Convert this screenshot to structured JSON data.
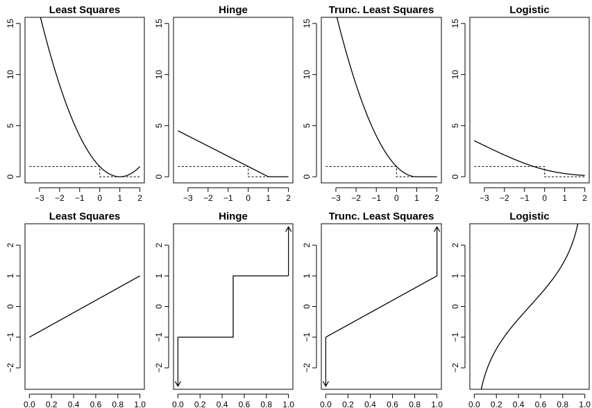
{
  "chart_data": [
    {
      "type": "line",
      "title": "Least Squares",
      "xlabel": "",
      "ylabel": "",
      "xlim": [
        -3.5,
        2
      ],
      "ylim": [
        0,
        15
      ],
      "xticks": [
        -3,
        -2,
        -1,
        0,
        1,
        2
      ],
      "yticks": [
        0,
        5,
        10,
        15
      ],
      "series": [
        {
          "style": "solid",
          "function": "(1-x)^2",
          "x": [
            -3.5,
            -3,
            -2.5,
            -2,
            -1.5,
            -1,
            -0.5,
            0,
            0.5,
            1,
            1.5,
            2
          ],
          "y": [
            20.25,
            16,
            12.25,
            9,
            6.25,
            4,
            2.25,
            1,
            0.25,
            0,
            0.25,
            1
          ]
        },
        {
          "style": "dashed",
          "x": [
            -3.5,
            0,
            0,
            2
          ],
          "y": [
            1,
            1,
            0,
            0
          ]
        }
      ]
    },
    {
      "type": "line",
      "title": "Hinge",
      "xlabel": "",
      "ylabel": "",
      "xlim": [
        -3.5,
        2
      ],
      "ylim": [
        0,
        15
      ],
      "xticks": [
        -3,
        -2,
        -1,
        0,
        1,
        2
      ],
      "yticks": [
        0,
        5,
        10,
        15
      ],
      "series": [
        {
          "style": "solid",
          "function": "max(0, 1-x)",
          "x": [
            -3.5,
            1,
            2
          ],
          "y": [
            4.5,
            0,
            0
          ]
        },
        {
          "style": "dashed",
          "x": [
            -3.5,
            0,
            0,
            2
          ],
          "y": [
            1,
            1,
            0,
            0
          ]
        }
      ]
    },
    {
      "type": "line",
      "title": "Trunc. Least Squares",
      "xlabel": "",
      "ylabel": "",
      "xlim": [
        -3.5,
        2
      ],
      "ylim": [
        0,
        15
      ],
      "xticks": [
        -3,
        -2,
        -1,
        0,
        1,
        2
      ],
      "yticks": [
        0,
        5,
        10,
        15
      ],
      "series": [
        {
          "style": "solid",
          "function": "max(0, 1-x)^2",
          "x": [
            -3.5,
            -3,
            -2.5,
            -2,
            -1.5,
            -1,
            -0.5,
            0,
            0.5,
            1,
            2
          ],
          "y": [
            20.25,
            16,
            12.25,
            9,
            6.25,
            4,
            2.25,
            1,
            0.25,
            0,
            0
          ]
        },
        {
          "style": "dashed",
          "x": [
            -3.5,
            0,
            0,
            2
          ],
          "y": [
            1,
            1,
            0,
            0
          ]
        }
      ]
    },
    {
      "type": "line",
      "title": "Logistic",
      "xlabel": "",
      "ylabel": "",
      "xlim": [
        -3.5,
        2
      ],
      "ylim": [
        0,
        15
      ],
      "xticks": [
        -3,
        -2,
        -1,
        0,
        1,
        2
      ],
      "yticks": [
        0,
        5,
        10,
        15
      ],
      "series": [
        {
          "style": "solid",
          "function": "log(1+exp(-x))",
          "x": [
            -3.5,
            -3,
            -2,
            -1,
            0,
            1,
            2
          ],
          "y": [
            3.53,
            3.05,
            2.13,
            1.31,
            0.69,
            0.31,
            0.13
          ]
        },
        {
          "style": "dashed",
          "x": [
            -3.5,
            0,
            0,
            2
          ],
          "y": [
            1,
            1,
            0,
            0
          ]
        }
      ]
    },
    {
      "type": "line",
      "title": "Least Squares",
      "xlabel": "",
      "ylabel": "",
      "xlim": [
        0,
        1
      ],
      "ylim": [
        -2.5,
        2.5
      ],
      "xticks": [
        0.0,
        0.2,
        0.4,
        0.6,
        0.8,
        1.0
      ],
      "yticks": [
        -2,
        -1,
        0,
        1,
        2
      ],
      "series": [
        {
          "style": "solid",
          "function": "2x-1",
          "x": [
            0,
            1
          ],
          "y": [
            -1,
            1
          ]
        }
      ]
    },
    {
      "type": "line",
      "title": "Hinge",
      "xlabel": "",
      "ylabel": "",
      "xlim": [
        0,
        1
      ],
      "ylim": [
        -2.5,
        2.5
      ],
      "xticks": [
        0.0,
        0.2,
        0.4,
        0.6,
        0.8,
        1.0
      ],
      "yticks": [
        -2,
        -1,
        0,
        1,
        2
      ],
      "series": [
        {
          "style": "solid",
          "x": [
            0,
            0.5,
            0.5,
            1
          ],
          "y": [
            -1,
            -1,
            1,
            1
          ]
        },
        {
          "style": "arrow",
          "x": [
            0,
            0
          ],
          "y": [
            -1,
            -2.6
          ]
        },
        {
          "style": "arrow",
          "x": [
            1,
            1
          ],
          "y": [
            1,
            2.6
          ]
        }
      ]
    },
    {
      "type": "line",
      "title": "Trunc. Least Squares",
      "xlabel": "",
      "ylabel": "",
      "xlim": [
        0,
        1
      ],
      "ylim": [
        -2.5,
        2.5
      ],
      "xticks": [
        0.0,
        0.2,
        0.4,
        0.6,
        0.8,
        1.0
      ],
      "yticks": [
        -2,
        -1,
        0,
        1,
        2
      ],
      "series": [
        {
          "style": "solid",
          "function": "2x-1",
          "x": [
            0,
            1
          ],
          "y": [
            -1,
            1
          ]
        },
        {
          "style": "arrow",
          "x": [
            0,
            0
          ],
          "y": [
            -1,
            -2.6
          ]
        },
        {
          "style": "arrow",
          "x": [
            1,
            1
          ],
          "y": [
            1,
            2.6
          ]
        }
      ]
    },
    {
      "type": "line",
      "title": "Logistic",
      "xlabel": "",
      "ylabel": "",
      "xlim": [
        0,
        1
      ],
      "ylim": [
        -2.5,
        2.5
      ],
      "xticks": [
        0.0,
        0.2,
        0.4,
        0.6,
        0.8,
        1.0
      ],
      "yticks": [
        -2,
        -1,
        0,
        1,
        2
      ],
      "series": [
        {
          "style": "solid",
          "function": "log(p/(1-p))",
          "x": [
            0.06,
            0.1,
            0.2,
            0.3,
            0.4,
            0.5,
            0.6,
            0.7,
            0.8,
            0.9,
            0.94
          ],
          "y": [
            -2.75,
            -2.2,
            -1.39,
            -0.85,
            -0.41,
            0,
            0.41,
            0.85,
            1.39,
            2.2,
            2.75
          ]
        }
      ]
    }
  ]
}
